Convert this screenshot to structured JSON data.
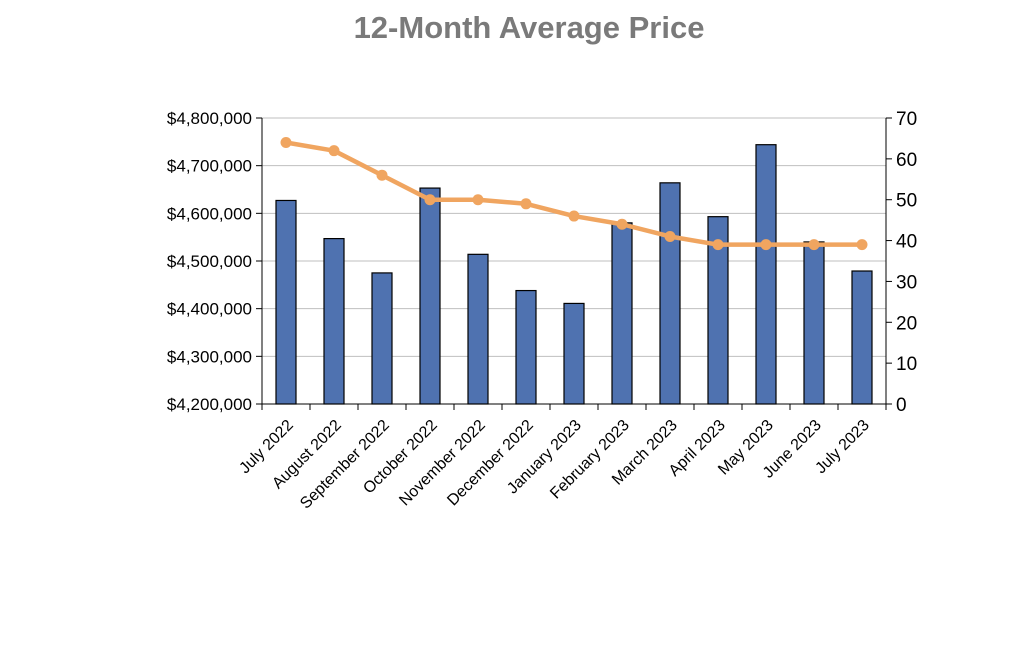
{
  "chart_data": {
    "type": "bar",
    "title": "12-Month Average Price",
    "categories": [
      "July 2022",
      "August 2022",
      "September 2022",
      "October 2022",
      "November 2022",
      "December 2022",
      "January 2023",
      "February 2023",
      "March 2023",
      "April 2023",
      "May 2023",
      "June 2023",
      "July 2023"
    ],
    "series": [
      {
        "type": "bar",
        "axis": "left",
        "color": "#4f72b0",
        "values": [
          4627000,
          4547000,
          4475000,
          4653000,
          4514000,
          4438000,
          4411000,
          4580000,
          4664000,
          4593000,
          4744000,
          4540000,
          4479000
        ]
      },
      {
        "type": "line",
        "axis": "right",
        "color": "#f0a560",
        "values": [
          64,
          62,
          56,
          50,
          50,
          49,
          46,
          44,
          41,
          39,
          39,
          39,
          39
        ]
      }
    ],
    "y_left": {
      "ylim": [
        4200000,
        4800000
      ],
      "ticks": [
        4200000,
        4300000,
        4400000,
        4500000,
        4600000,
        4700000,
        4800000
      ],
      "tick_labels": [
        "$4,200,000",
        "$4,300,000",
        "$4,400,000",
        "$4,500,000",
        "$4,600,000",
        "$4,700,000",
        "$4,800,000"
      ]
    },
    "y_right": {
      "ylim": [
        0,
        70
      ],
      "ticks": [
        0,
        10,
        20,
        30,
        40,
        50,
        60,
        70
      ],
      "tick_labels": [
        "0",
        "10",
        "20",
        "30",
        "40",
        "50",
        "60",
        "70"
      ]
    },
    "grid": true,
    "legend": "none"
  }
}
